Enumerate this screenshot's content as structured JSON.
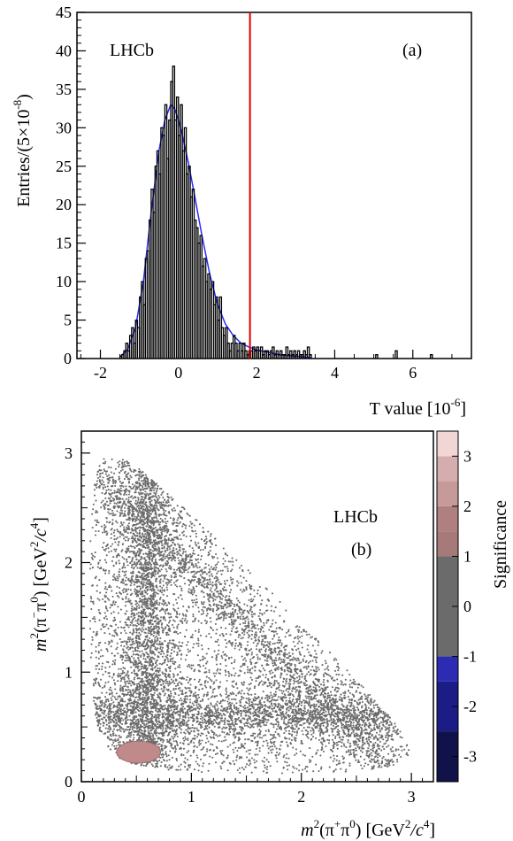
{
  "chart_data": [
    {
      "type": "histogram",
      "panel_label": "(a)",
      "experiment_label": "LHCb",
      "xlabel": "T value [10<sup>-6</sup>]",
      "xlabel_text": "T value [10",
      "xlabel_sup": "-6",
      "xlabel_tail": "]",
      "ylabel_text": "Entries/(5×10",
      "ylabel_sup": "-8",
      "ylabel_tail": ")",
      "xlim": [
        -2.6,
        7.5
      ],
      "ylim": [
        0,
        45
      ],
      "x_ticks": [
        -2,
        0,
        2,
        4,
        6
      ],
      "y_ticks": [
        0,
        5,
        10,
        15,
        20,
        25,
        30,
        35,
        40,
        45
      ],
      "bin_width": 0.05,
      "bins": [
        [
          -1.5,
          0.3
        ],
        [
          -1.45,
          0.5
        ],
        [
          -1.4,
          1
        ],
        [
          -1.35,
          2
        ],
        [
          -1.3,
          1
        ],
        [
          -1.25,
          3
        ],
        [
          -1.2,
          4
        ],
        [
          -1.15,
          2
        ],
        [
          -1.1,
          5
        ],
        [
          -1.05,
          4
        ],
        [
          -1.0,
          8
        ],
        [
          -0.95,
          10
        ],
        [
          -0.9,
          7
        ],
        [
          -0.85,
          13
        ],
        [
          -0.8,
          14
        ],
        [
          -0.75,
          18
        ],
        [
          -0.7,
          22
        ],
        [
          -0.65,
          19
        ],
        [
          -0.6,
          25
        ],
        [
          -0.55,
          27
        ],
        [
          -0.5,
          24
        ],
        [
          -0.45,
          30
        ],
        [
          -0.4,
          29
        ],
        [
          -0.35,
          33
        ],
        [
          -0.3,
          26
        ],
        [
          -0.25,
          31
        ],
        [
          -0.2,
          36
        ],
        [
          -0.15,
          38
        ],
        [
          -0.1,
          31
        ],
        [
          -0.05,
          34
        ],
        [
          0.0,
          29
        ],
        [
          0.05,
          33
        ],
        [
          0.1,
          27
        ],
        [
          0.15,
          30
        ],
        [
          0.2,
          24
        ],
        [
          0.25,
          25
        ],
        [
          0.3,
          21
        ],
        [
          0.35,
          22
        ],
        [
          0.4,
          18
        ],
        [
          0.45,
          17
        ],
        [
          0.5,
          15
        ],
        [
          0.55,
          16
        ],
        [
          0.6,
          12
        ],
        [
          0.65,
          13
        ],
        [
          0.7,
          10
        ],
        [
          0.75,
          11
        ],
        [
          0.8,
          9
        ],
        [
          0.85,
          10
        ],
        [
          0.9,
          7
        ],
        [
          0.95,
          8
        ],
        [
          1.0,
          5
        ],
        [
          1.05,
          8
        ],
        [
          1.1,
          4
        ],
        [
          1.15,
          3
        ],
        [
          1.2,
          4
        ],
        [
          1.25,
          2
        ],
        [
          1.3,
          1
        ],
        [
          1.35,
          2
        ],
        [
          1.4,
          3
        ],
        [
          1.45,
          2
        ],
        [
          1.5,
          1
        ],
        [
          1.55,
          2
        ],
        [
          1.6,
          1
        ],
        [
          1.65,
          2
        ],
        [
          1.7,
          1
        ],
        [
          1.75,
          0.5
        ],
        [
          1.8,
          1
        ],
        [
          1.85,
          1
        ],
        [
          1.9,
          1.5
        ],
        [
          1.95,
          1
        ],
        [
          2.0,
          1.5
        ],
        [
          2.05,
          1
        ],
        [
          2.1,
          1.5
        ],
        [
          2.15,
          0.5
        ],
        [
          2.2,
          1
        ],
        [
          2.25,
          1
        ],
        [
          2.3,
          0.5
        ],
        [
          2.35,
          1
        ],
        [
          2.4,
          1.5
        ],
        [
          2.45,
          0.5
        ],
        [
          2.5,
          1
        ],
        [
          2.55,
          0.5
        ],
        [
          2.6,
          1
        ],
        [
          2.65,
          0.5
        ],
        [
          2.7,
          0.5
        ],
        [
          2.75,
          1.5
        ],
        [
          2.8,
          0.5
        ],
        [
          2.85,
          1
        ],
        [
          2.9,
          0.5
        ],
        [
          2.95,
          1
        ],
        [
          3.0,
          0.5
        ],
        [
          3.05,
          1
        ],
        [
          3.1,
          0.5
        ],
        [
          3.15,
          0.5
        ],
        [
          3.2,
          1
        ],
        [
          3.25,
          0.5
        ],
        [
          3.3,
          1.5
        ],
        [
          3.35,
          0.5
        ],
        [
          5.05,
          0.5
        ],
        [
          5.55,
          1
        ],
        [
          6.45,
          0.5
        ]
      ],
      "fit_curve": {
        "color": "#2a2aff",
        "x": [
          -1.5,
          -1.3,
          -1.1,
          -0.9,
          -0.7,
          -0.5,
          -0.35,
          -0.2,
          -0.1,
          0.0,
          0.1,
          0.25,
          0.4,
          0.6,
          0.8,
          1.0,
          1.2,
          1.4,
          1.6,
          1.8,
          2.0,
          2.3,
          2.6,
          3.0,
          3.4
        ],
        "y": [
          0.2,
          1.2,
          4.0,
          10.0,
          19.0,
          27.0,
          31.0,
          33.0,
          32.5,
          31.0,
          29.0,
          25.5,
          21.5,
          16.0,
          11.0,
          7.0,
          4.5,
          3.0,
          2.0,
          1.5,
          1.1,
          0.8,
          0.5,
          0.3,
          0.1
        ]
      },
      "vertical_line": {
        "x": 1.83,
        "color": "#e00000"
      }
    },
    {
      "type": "scatter",
      "panel_label": "(b)",
      "experiment_label": "LHCb",
      "xlabel_italic": "m",
      "xlabel_sup1": "2",
      "xlabel_mid": "(π",
      "xlabel_sup2": "+",
      "xlabel_mid2": "π",
      "xlabel_sup3": "0",
      "xlabel_unit": ") [GeV",
      "xlabel_sup4": "2",
      "xlabel_unit2": "/c",
      "xlabel_sup5": "4",
      "xlabel_end": "]",
      "ylabel_italic": "m",
      "ylabel_sup1": "2",
      "ylabel_mid": "(π",
      "ylabel_sup2": "−",
      "ylabel_mid2": "π",
      "ylabel_sup3": "0",
      "ylabel_unit": ") [GeV",
      "ylabel_sup4": "2",
      "ylabel_unit2": "/c",
      "ylabel_sup5": "4",
      "ylabel_end": "]",
      "xlim": [
        0,
        3.2
      ],
      "ylim": [
        0,
        3.2
      ],
      "x_ticks": [
        0,
        1,
        2,
        3
      ],
      "y_ticks": [
        0,
        1,
        2,
        3
      ],
      "point_color": "#6b6b6b",
      "dalitz_boundary": {
        "m_parent": 1.8648,
        "m_charged": 0.13957,
        "m_neutral": 0.13498
      },
      "significance_region": {
        "color": "#c08a8a",
        "center": [
          0.52,
          0.27
        ],
        "half_width": [
          0.2,
          0.1
        ],
        "value": 1.5
      },
      "colorbar": {
        "title": "Significance",
        "range": [
          -3.5,
          3.5
        ],
        "ticks": [
          -3,
          -2,
          -1,
          0,
          1,
          2,
          3
        ],
        "bands": [
          {
            "from": -3.5,
            "to": -2.5,
            "color": "#12124a"
          },
          {
            "from": -2.5,
            "to": -1.5,
            "color": "#1c1c86"
          },
          {
            "from": -1.5,
            "to": -1.0,
            "color": "#2b2bb3"
          },
          {
            "from": -1.0,
            "to": 1.0,
            "color": "#6b6b6b"
          },
          {
            "from": 1.0,
            "to": 1.5,
            "color": "#a77a7a"
          },
          {
            "from": 1.5,
            "to": 2.0,
            "color": "#b07f7f"
          },
          {
            "from": 2.0,
            "to": 2.5,
            "color": "#c79a9a"
          },
          {
            "from": 2.5,
            "to": 3.0,
            "color": "#d4aeae"
          },
          {
            "from": 3.0,
            "to": 3.5,
            "color": "#f2d6d6"
          }
        ]
      }
    }
  ]
}
